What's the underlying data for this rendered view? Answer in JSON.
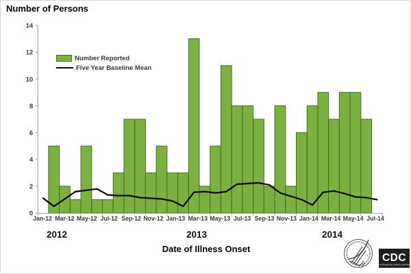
{
  "chart": {
    "title": "Number of Persons",
    "x_axis_title": "Date of Illness Onset",
    "year_labels": [
      "2012",
      "2013",
      "2014"
    ],
    "legend": [
      {
        "label": "Number Reported",
        "type": "bar"
      },
      {
        "label": "Five Year Baseline Mean",
        "type": "line"
      }
    ],
    "colors": {
      "bar_fill": "#7bb042",
      "bar_border": "#456e1d",
      "baseline_line": "#0d0d0d",
      "axis": "#aaaaaa",
      "tick_text": "#383838"
    },
    "chart_data": {
      "type": "bar+line",
      "x": [
        "Jan-12",
        "Feb-12",
        "Mar-12",
        "Apr-12",
        "May-12",
        "Jun-12",
        "Jul-12",
        "Aug-12",
        "Sep-12",
        "Oct-12",
        "Nov-12",
        "Dec-12",
        "Jan-13",
        "Feb-13",
        "Mar-13",
        "Apr-13",
        "May-13",
        "Jun-13",
        "Jul-13",
        "Aug-13",
        "Sep-13",
        "Oct-13",
        "Nov-13",
        "Dec-13",
        "Jan-14",
        "Feb-14",
        "Mar-14",
        "Apr-14",
        "May-14",
        "Jun-14",
        "Jul-14",
        "Aug-14"
      ],
      "x_tick_labels": [
        "Jan-12",
        "Mar-12",
        "May-12",
        "Jul-12",
        "Sep-12",
        "Nov-12",
        "Jan-13",
        "Mar-13",
        "May-13",
        "Jul-13",
        "Sep-13",
        "Nov-13",
        "Jan-14",
        "Mar-14",
        "May-14",
        "Jul-14"
      ],
      "series": [
        {
          "name": "Number Reported",
          "type": "bar",
          "values": [
            0,
            5,
            2,
            1,
            5,
            1,
            1,
            3,
            7,
            7,
            3,
            5,
            3,
            3,
            13,
            2,
            5,
            11,
            8,
            8,
            7,
            2,
            8,
            2,
            6,
            8,
            9,
            7,
            9,
            9,
            7,
            0
          ]
        },
        {
          "name": "Five Year Baseline Mean",
          "type": "line",
          "values": [
            1.1,
            0.5,
            1.05,
            1.6,
            1.7,
            1.8,
            1.35,
            1.3,
            1.3,
            1.15,
            1.1,
            1.05,
            0.9,
            0.5,
            1.55,
            1.6,
            1.5,
            1.6,
            2.15,
            2.2,
            2.25,
            2.1,
            1.5,
            1.25,
            1.0,
            0.6,
            1.55,
            1.65,
            1.45,
            1.2,
            1.15,
            1.0
          ]
        }
      ],
      "ylim": [
        0,
        14
      ],
      "yticks": [
        0,
        2,
        4,
        6,
        8,
        10,
        12,
        14
      ],
      "grid": false,
      "legend_position": "upper-left-inside"
    }
  },
  "logos": {
    "cdc_text": "CDC",
    "cdc_subtext": "CENTERS FOR DISEASE CONTROL AND PREVENTION"
  }
}
